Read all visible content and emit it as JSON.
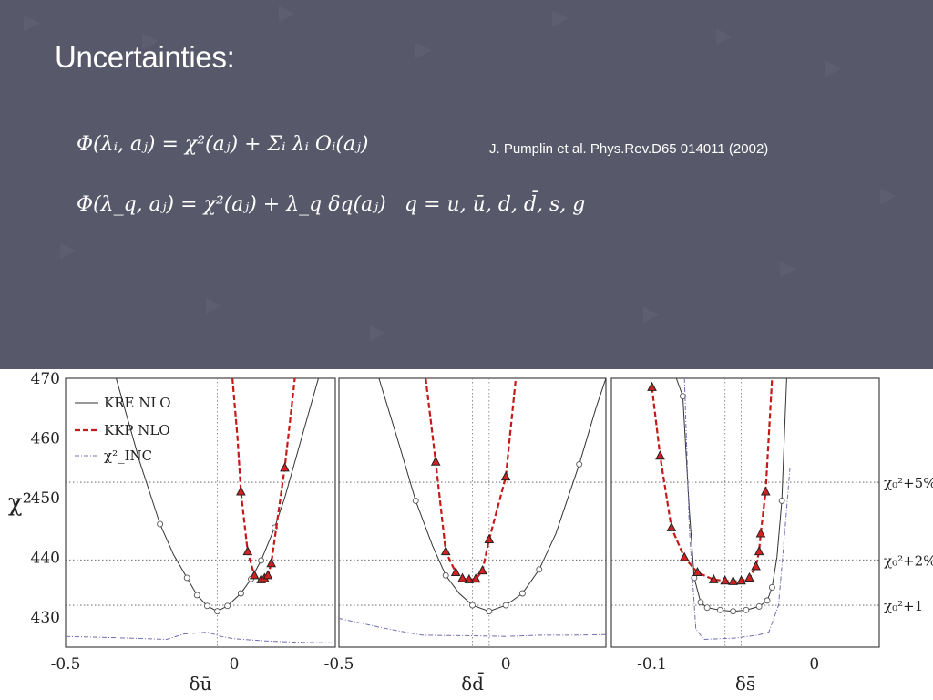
{
  "slide": {
    "title": "Uncertainties:",
    "formula_1": "Φ(λᵢ, aⱼ) = χ²(aⱼ) + Σᵢ λᵢ Oᵢ(aⱼ)",
    "formula_2": "Φ(λ_q, aⱼ) = χ²(aⱼ) + λ_q δq(aⱼ)",
    "formula_3": "q = u, ū, d, d̄, s, g",
    "reference": "J. Pumplin et al. Phys.Rev.D65 014011 (2002)",
    "colors": {
      "background": "#575869",
      "text": "#ffffff"
    }
  },
  "chart_data": [
    {
      "type": "line",
      "panel": "u-bar",
      "xlabel": "δū",
      "ylabel": "χ²",
      "xlim": [
        -0.5,
        0.3
      ],
      "ylim": [
        425,
        470
      ],
      "x_ticks": [
        "-0.5",
        "0"
      ],
      "y_ticks": [
        "430",
        "440",
        "450",
        "460",
        "470"
      ],
      "legend": [
        "KRE NLO",
        "KKP NLO",
        "χ²_INC"
      ],
      "legend_position": "top-left",
      "series": [
        {
          "name": "KRE NLO",
          "color": "#333333",
          "style": "solid",
          "marker": "circle",
          "points": [
            [
              -0.35,
              470
            ],
            [
              -0.28,
              456
            ],
            [
              -0.22,
              445.6
            ],
            [
              -0.18,
              440.5
            ],
            [
              -0.14,
              436.6
            ],
            [
              -0.11,
              433.7
            ],
            [
              -0.08,
              431.9
            ],
            [
              -0.05,
              431.0
            ],
            [
              -0.02,
              431.9
            ],
            [
              0.02,
              434.0
            ],
            [
              0.05,
              436.4
            ],
            [
              0.08,
              439.5
            ],
            [
              0.12,
              445.0
            ],
            [
              0.15,
              450.0
            ],
            [
              0.18,
              456.0
            ],
            [
              0.21,
              462.0
            ],
            [
              0.25,
              470
            ]
          ],
          "marker_x": [
            -0.22,
            -0.14,
            -0.11,
            -0.08,
            -0.05,
            -0.02,
            0.02,
            0.05,
            0.08,
            0.12
          ]
        },
        {
          "name": "KKP NLO",
          "color": "#c41a1a",
          "style": "dashed",
          "marker": "triangle",
          "points": [
            [
              -0.005,
              470
            ],
            [
              0.01,
              460
            ],
            [
              0.02,
              451.0
            ],
            [
              0.04,
              441.0
            ],
            [
              0.06,
              437.0
            ],
            [
              0.08,
              436.3
            ],
            [
              0.09,
              436.5
            ],
            [
              0.1,
              437.0
            ],
            [
              0.11,
              439.0
            ],
            [
              0.15,
              455.0
            ],
            [
              0.18,
              470
            ]
          ],
          "marker_x": [
            0.02,
            0.04,
            0.06,
            0.08,
            0.09,
            0.1,
            0.11,
            0.15
          ]
        },
        {
          "name": "χ²_INC",
          "color": "#6f6fb0",
          "style": "dashdot",
          "marker": "none",
          "points": [
            [
              -0.5,
              426.8
            ],
            [
              -0.3,
              426.5
            ],
            [
              -0.2,
              426.3
            ],
            [
              -0.15,
              427.2
            ],
            [
              -0.08,
              427.5
            ],
            [
              -0.04,
              426.8
            ],
            [
              0.0,
              426.4
            ],
            [
              0.1,
              426.0
            ],
            [
              0.2,
              425.8
            ],
            [
              0.3,
              425.7
            ]
          ]
        }
      ],
      "vlines": [
        -0.05,
        0.08
      ]
    },
    {
      "type": "line",
      "panel": "d-bar",
      "xlabel": "δd̄",
      "xlim": [
        -0.5,
        0.3
      ],
      "ylim": [
        425,
        470
      ],
      "x_ticks": [
        "-0.5",
        "0"
      ],
      "series": [
        {
          "name": "KRE NLO",
          "color": "#333333",
          "style": "solid",
          "marker": "circle",
          "points": [
            [
              -0.38,
              470
            ],
            [
              -0.32,
              459
            ],
            [
              -0.27,
              449.5
            ],
            [
              -0.22,
              442.0
            ],
            [
              -0.18,
              437.0
            ],
            [
              -0.14,
              434.0
            ],
            [
              -0.1,
              432.0
            ],
            [
              -0.05,
              431.0
            ],
            [
              0.0,
              432.0
            ],
            [
              0.05,
              434.0
            ],
            [
              0.1,
              438.0
            ],
            [
              0.15,
              444.0
            ],
            [
              0.22,
              455.6
            ],
            [
              0.27,
              465
            ],
            [
              0.3,
              470
            ]
          ],
          "marker_x": [
            -0.27,
            -0.18,
            -0.1,
            -0.05,
            0.0,
            0.05,
            0.1,
            0.22
          ]
        },
        {
          "name": "KKP NLO",
          "color": "#c41a1a",
          "style": "dashed",
          "marker": "triangle",
          "points": [
            [
              -0.24,
              470
            ],
            [
              -0.21,
              456.0
            ],
            [
              -0.18,
              441.0
            ],
            [
              -0.15,
              437.5
            ],
            [
              -0.13,
              436.5
            ],
            [
              -0.11,
              436.3
            ],
            [
              -0.09,
              436.4
            ],
            [
              -0.07,
              437.8
            ],
            [
              -0.05,
              443.0
            ],
            [
              0.0,
              453.5
            ],
            [
              0.03,
              470
            ]
          ],
          "marker_x": [
            -0.21,
            -0.18,
            -0.15,
            -0.13,
            -0.11,
            -0.09,
            -0.07,
            -0.05,
            0.0
          ]
        },
        {
          "name": "χ²_INC",
          "color": "#6f6fb0",
          "style": "dashdot",
          "marker": "none",
          "points": [
            [
              -0.5,
              429.8
            ],
            [
              -0.35,
              428.0
            ],
            [
              -0.25,
              427.0
            ],
            [
              -0.1,
              426.9
            ],
            [
              0.0,
              426.8
            ],
            [
              0.1,
              427.0
            ],
            [
              0.2,
              427.0
            ],
            [
              0.3,
              427.1
            ]
          ]
        }
      ],
      "vlines": [
        -0.1,
        -0.05
      ]
    },
    {
      "type": "line",
      "panel": "s-bar",
      "xlabel": "δs̄",
      "xlim": [
        -0.125,
        0.04
      ],
      "ylim": [
        425,
        470
      ],
      "x_ticks": [
        "-0.1",
        "0"
      ],
      "right_labels": [
        "χ₀²+5%",
        "χ₀²+2%",
        "χ₀²+1"
      ],
      "right_label_values": [
        452.6,
        439.6,
        432.0
      ],
      "series": [
        {
          "name": "KRE NLO",
          "color": "#333333",
          "style": "solid",
          "marker": "circle",
          "points": [
            [
              -0.085,
              470
            ],
            [
              -0.081,
              467
            ],
            [
              -0.077,
              448
            ],
            [
              -0.074,
              436.6
            ],
            [
              -0.07,
              432.5
            ],
            [
              -0.066,
              431.6
            ],
            [
              -0.058,
              431.2
            ],
            [
              -0.05,
              431.0
            ],
            [
              -0.042,
              431.2
            ],
            [
              -0.034,
              431.8
            ],
            [
              -0.029,
              432.8
            ],
            [
              -0.026,
              435.0
            ],
            [
              -0.023,
              440
            ],
            [
              -0.02,
              449.5
            ],
            [
              -0.017,
              470
            ]
          ],
          "marker_x": [
            -0.081,
            -0.074,
            -0.07,
            -0.066,
            -0.058,
            -0.05,
            -0.042,
            -0.034,
            -0.029,
            -0.026,
            -0.02
          ]
        },
        {
          "name": "KKP NLO",
          "color": "#c41a1a",
          "style": "dashed",
          "marker": "triangle",
          "points": [
            [
              -0.1,
              468.5
            ],
            [
              -0.095,
              457.0
            ],
            [
              -0.088,
              445.0
            ],
            [
              -0.08,
              440.0
            ],
            [
              -0.072,
              437.5
            ],
            [
              -0.062,
              436.3
            ],
            [
              -0.055,
              436.1
            ],
            [
              -0.05,
              436.0
            ],
            [
              -0.045,
              436.1
            ],
            [
              -0.04,
              436.6
            ],
            [
              -0.036,
              438.5
            ],
            [
              -0.034,
              441.0
            ],
            [
              -0.033,
              444.0
            ],
            [
              -0.03,
              451.0
            ],
            [
              -0.026,
              470
            ]
          ],
          "marker_x": [
            -0.1,
            -0.095,
            -0.088,
            -0.08,
            -0.072,
            -0.062,
            -0.055,
            -0.05,
            -0.045,
            -0.04,
            -0.036,
            -0.034,
            -0.033,
            -0.03
          ]
        },
        {
          "name": "χ²_INC",
          "color": "#6f6fb0",
          "style": "dashdot",
          "marker": "none",
          "points": [
            [
              -0.08,
              470
            ],
            [
              -0.077,
              445
            ],
            [
              -0.073,
              428
            ],
            [
              -0.068,
              426.3
            ],
            [
              -0.05,
              426.5
            ],
            [
              -0.035,
              427.0
            ],
            [
              -0.028,
              427.5
            ],
            [
              -0.022,
              432
            ],
            [
              -0.018,
              445
            ],
            [
              -0.015,
              455
            ]
          ]
        }
      ],
      "vlines": [
        -0.055,
        -0.045
      ]
    }
  ],
  "reference_lines": {
    "y_values": [
      452.6,
      439.6,
      432.0
    ],
    "style": "dotted"
  }
}
